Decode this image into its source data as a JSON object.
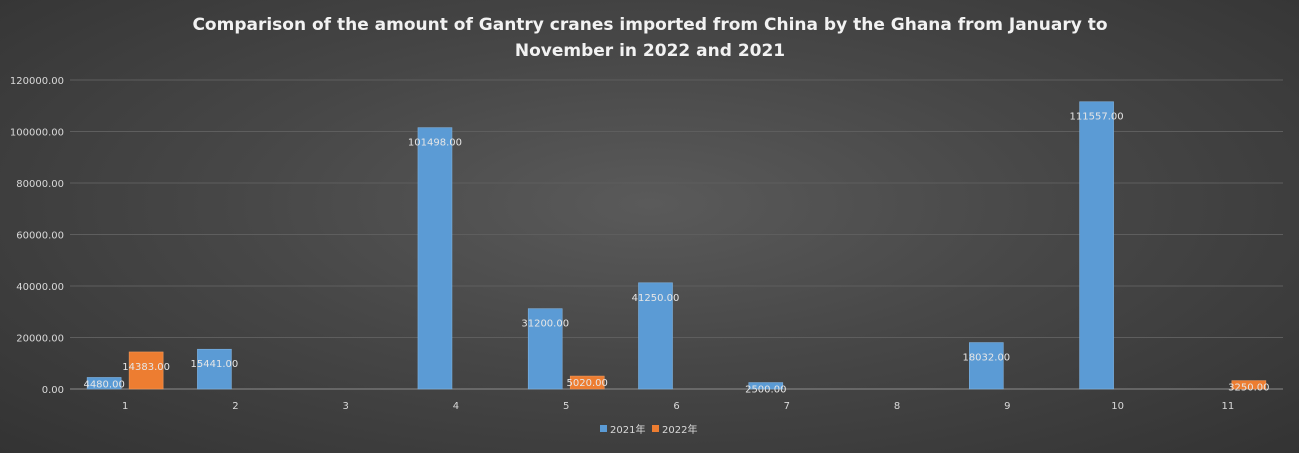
{
  "chart_data": {
    "type": "bar",
    "title_lines": [
      "Comparison of the amount of Gantry cranes imported from China by the Ghana from January to",
      "November in 2022 and 2021"
    ],
    "categories": [
      "1",
      "2",
      "3",
      "4",
      "5",
      "6",
      "7",
      "8",
      "9",
      "10",
      "11"
    ],
    "series": [
      {
        "name": "2021年",
        "color": "#5b9bd5",
        "values": [
          4480,
          15441,
          null,
          101498,
          31200,
          41250,
          2500,
          null,
          18032,
          111557,
          null
        ],
        "labels": [
          "4480.00",
          "15441.00",
          "",
          "101498.00",
          "31200.00",
          "41250.00",
          "2500.00",
          "",
          "18032.00",
          "111557.00",
          ""
        ]
      },
      {
        "name": "2022年",
        "color": "#ed7d31",
        "values": [
          14383,
          null,
          null,
          null,
          5020,
          null,
          null,
          null,
          null,
          null,
          3250
        ],
        "labels": [
          "14383.00",
          "",
          "",
          "",
          "5020.00",
          "",
          "",
          "",
          "",
          "",
          "3250.00"
        ]
      }
    ],
    "yticks": [
      "0.00",
      "20000.00",
      "40000.00",
      "60000.00",
      "80000.00",
      "100000.00",
      "120000.00"
    ],
    "ylim": [
      0,
      120000
    ],
    "grid": true,
    "legend_position": "bottom"
  }
}
